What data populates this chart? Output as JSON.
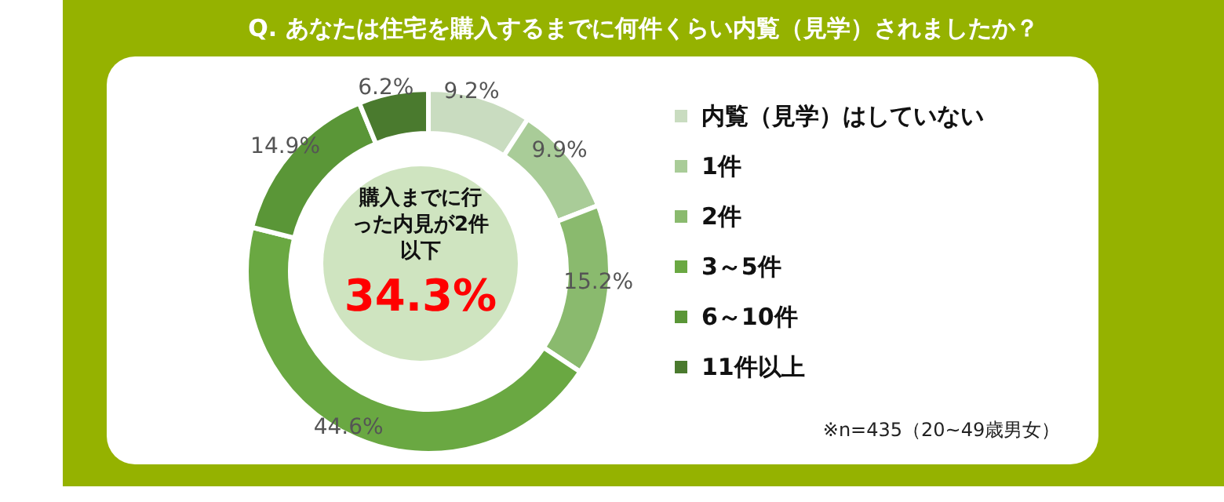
{
  "chart_data": {
    "type": "donut",
    "title": "Q. あなたは住宅を購入するまでに何件くらい内覧（見学）されましたか？",
    "categories": [
      "内覧（見学）はしていない",
      "1件",
      "2件",
      "3～5件",
      "6～10件",
      "11件以上"
    ],
    "values": [
      9.2,
      9.9,
      15.2,
      44.6,
      14.9,
      6.2
    ],
    "colors": [
      "#c9dcc0",
      "#a9cc98",
      "#8aba6e",
      "#6aa842",
      "#5a9637",
      "#4a7a2e"
    ],
    "value_labels": [
      "9.2%",
      "9.9%",
      "15.2%",
      "44.6%",
      "14.9%",
      "6.2%"
    ],
    "legend": "right",
    "annotations": [
      "購入までに行った内見が2件以下",
      "34.3%",
      "※n=435（20~49歳男女）"
    ]
  }
}
